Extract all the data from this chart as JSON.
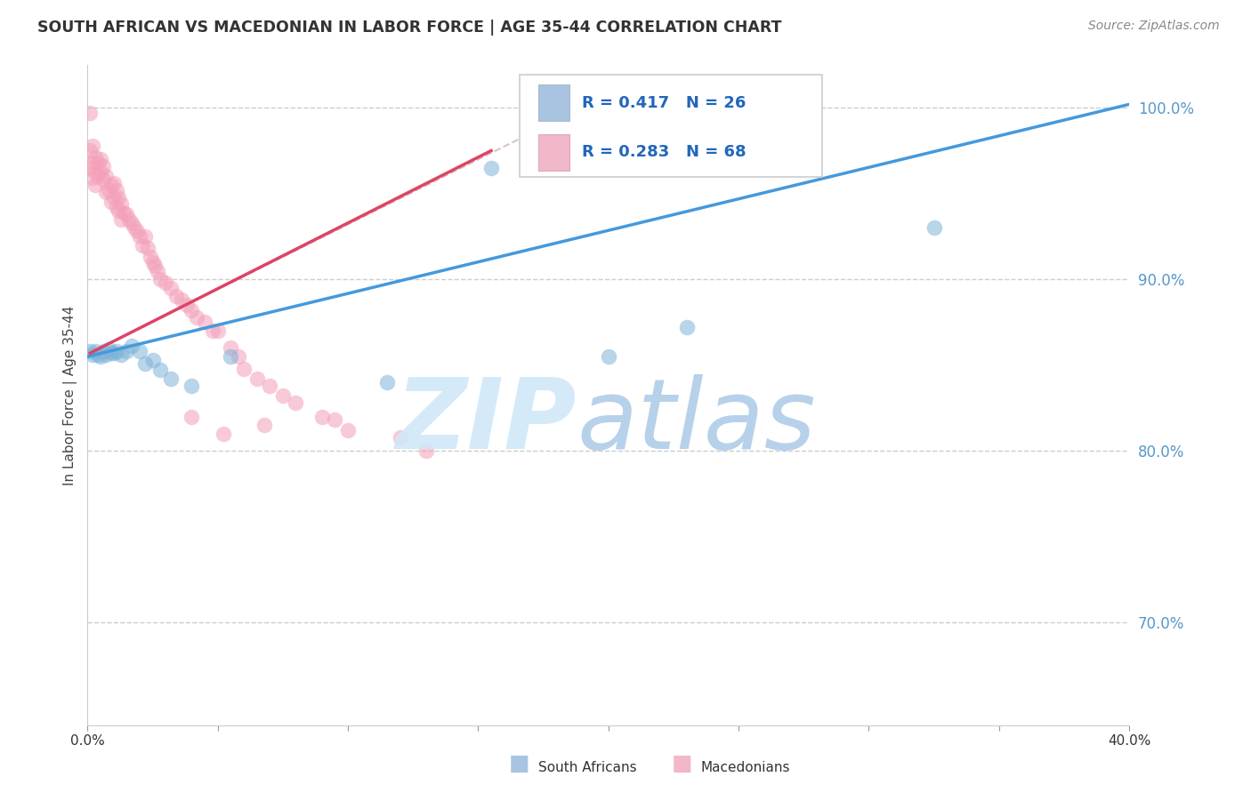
{
  "title": "SOUTH AFRICAN VS MACEDONIAN IN LABOR FORCE | AGE 35-44 CORRELATION CHART",
  "source": "Source: ZipAtlas.com",
  "ylabel": "In Labor Force | Age 35-44",
  "xlim": [
    0.0,
    0.4
  ],
  "ylim": [
    0.64,
    1.025
  ],
  "xticks": [
    0.0,
    0.05,
    0.1,
    0.15,
    0.2,
    0.25,
    0.3,
    0.35,
    0.4
  ],
  "xticklabels": [
    "0.0%",
    "",
    "",
    "",
    "",
    "",
    "",
    "",
    "40.0%"
  ],
  "yticks_right": [
    0.7,
    0.8,
    0.9,
    1.0
  ],
  "yticklabels_right": [
    "70.0%",
    "80.0%",
    "90.0%",
    "100.0%"
  ],
  "legend_color1": "#a8c4e0",
  "legend_color2": "#f0b8c8",
  "blue_color": "#7eb3d8",
  "pink_color": "#f4a0b8",
  "trend_blue": "#4499dd",
  "trend_pink": "#dd4466",
  "grid_color": "#cccccc",
  "right_label_color": "#5599cc",
  "title_color": "#333333",
  "source_color": "#888888",
  "sa_x": [
    0.001,
    0.002,
    0.003,
    0.004,
    0.005,
    0.006,
    0.007,
    0.008,
    0.009,
    0.01,
    0.011,
    0.013,
    0.015,
    0.017,
    0.02,
    0.022,
    0.025,
    0.028,
    0.032,
    0.04,
    0.055,
    0.115,
    0.155,
    0.2,
    0.23,
    0.325
  ],
  "sa_y": [
    0.858,
    0.856,
    0.858,
    0.856,
    0.855,
    0.858,
    0.856,
    0.859,
    0.857,
    0.857,
    0.858,
    0.856,
    0.858,
    0.861,
    0.858,
    0.851,
    0.853,
    0.847,
    0.842,
    0.838,
    0.855,
    0.84,
    0.965,
    0.855,
    0.872,
    0.93
  ],
  "mac_x": [
    0.001,
    0.001,
    0.001,
    0.002,
    0.002,
    0.002,
    0.003,
    0.003,
    0.003,
    0.004,
    0.004,
    0.005,
    0.005,
    0.006,
    0.006,
    0.007,
    0.007,
    0.008,
    0.009,
    0.009,
    0.01,
    0.01,
    0.011,
    0.011,
    0.012,
    0.012,
    0.013,
    0.013,
    0.014,
    0.015,
    0.016,
    0.017,
    0.018,
    0.019,
    0.02,
    0.021,
    0.022,
    0.023,
    0.024,
    0.025,
    0.026,
    0.027,
    0.028,
    0.03,
    0.032,
    0.034,
    0.036,
    0.038,
    0.04,
    0.042,
    0.045,
    0.048,
    0.05,
    0.055,
    0.058,
    0.06,
    0.065,
    0.07,
    0.075,
    0.08,
    0.09,
    0.095,
    0.1,
    0.12,
    0.13,
    0.04,
    0.052,
    0.068
  ],
  "mac_y": [
    0.997,
    0.975,
    0.965,
    0.978,
    0.968,
    0.959,
    0.971,
    0.963,
    0.955,
    0.968,
    0.96,
    0.97,
    0.963,
    0.966,
    0.958,
    0.96,
    0.951,
    0.952,
    0.955,
    0.945,
    0.956,
    0.948,
    0.952,
    0.942,
    0.948,
    0.94,
    0.944,
    0.935,
    0.939,
    0.938,
    0.935,
    0.933,
    0.93,
    0.928,
    0.925,
    0.92,
    0.925,
    0.918,
    0.913,
    0.91,
    0.908,
    0.905,
    0.9,
    0.898,
    0.895,
    0.89,
    0.888,
    0.885,
    0.882,
    0.878,
    0.875,
    0.87,
    0.87,
    0.86,
    0.855,
    0.848,
    0.842,
    0.838,
    0.832,
    0.828,
    0.82,
    0.818,
    0.812,
    0.808,
    0.8,
    0.82,
    0.81,
    0.815
  ],
  "blue_trendline": [
    [
      0.0,
      0.4
    ],
    [
      0.855,
      1.002
    ]
  ],
  "pink_trendline": [
    [
      0.001,
      0.155
    ],
    [
      0.857,
      0.975
    ]
  ],
  "diag_line": [
    [
      0.001,
      0.17
    ],
    [
      0.857,
      0.985
    ]
  ]
}
